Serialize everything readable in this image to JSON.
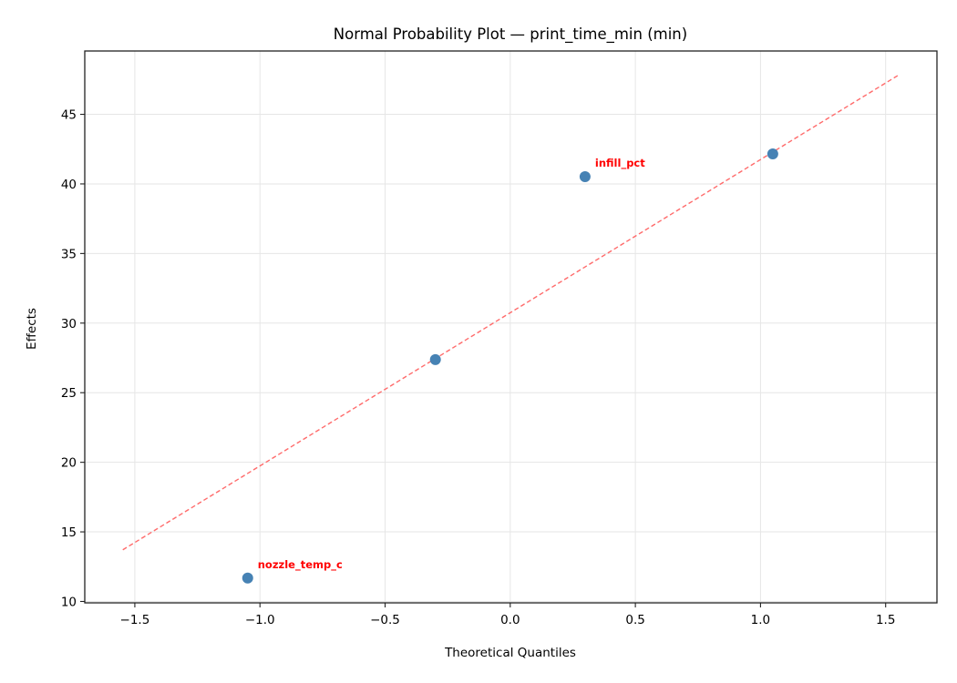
{
  "chart_data": {
    "type": "scatter",
    "title": "Normal Probability Plot — print_time_min (min)",
    "xlabel": "Theoretical Quantiles",
    "ylabel": "Effects",
    "xlim": [
      -1.7,
      1.705
    ],
    "ylim": [
      9.9,
      49.55
    ],
    "xticks": [
      -1.5,
      -1.0,
      -0.5,
      0.0,
      0.5,
      1.0,
      1.5
    ],
    "xtick_labels": [
      "−1.5",
      "−1.0",
      "−0.5",
      "0.0",
      "0.5",
      "1.0",
      "1.5"
    ],
    "yticks": [
      10,
      15,
      20,
      25,
      30,
      35,
      40,
      45
    ],
    "ytick_labels": [
      "10",
      "15",
      "20",
      "25",
      "30",
      "35",
      "40",
      "45"
    ],
    "grid": true,
    "legend": null,
    "points": [
      {
        "x": -1.049,
        "y": 11.68,
        "label": "nozzle_temp_c",
        "annotated": true
      },
      {
        "x": -0.299,
        "y": 27.38,
        "label": "",
        "annotated": false
      },
      {
        "x": 0.299,
        "y": 40.52,
        "label": "infill_pct",
        "annotated": true
      },
      {
        "x": 1.049,
        "y": 42.16,
        "label": "",
        "annotated": false
      }
    ],
    "fit_line": {
      "x": [
        -1.548,
        1.548
      ],
      "y": [
        13.71,
        47.78
      ],
      "style": "dashed"
    },
    "colors": {
      "points": "#4682b4",
      "fit_line": "#ff6b6b",
      "annotation": "#ff0000",
      "grid": "#e6e6e6",
      "axes": "#222222"
    }
  }
}
